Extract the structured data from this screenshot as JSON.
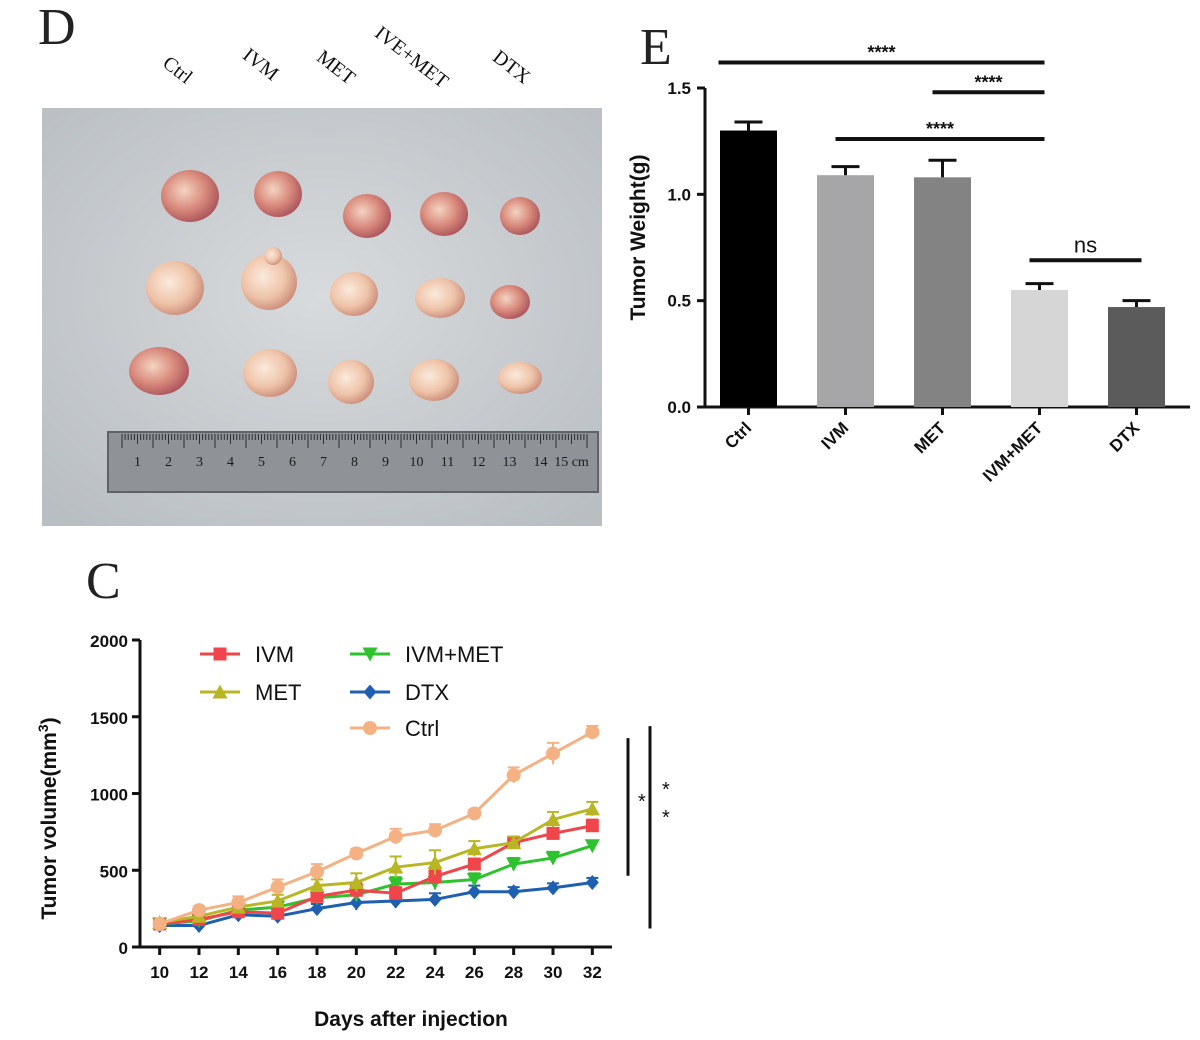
{
  "panels": {
    "d": {
      "letter": "D",
      "labels": [
        "Ctrl",
        "IVM",
        "MET",
        "IVE+MET",
        "DTX"
      ]
    },
    "e": {
      "letter": "E"
    },
    "c": {
      "letter": "C"
    }
  },
  "ruler": {
    "numbers": [
      "1",
      "2",
      "3",
      "4",
      "5",
      "6",
      "7",
      "8",
      "9",
      "10",
      "11",
      "12",
      "13",
      "14",
      "15 cm"
    ]
  },
  "colors": {
    "IVM": "#f0454a",
    "MET": "#b8b625",
    "IVM+MET": "#2ec22e",
    "DTX": "#1e5fb0",
    "Ctrl": "#f4b183"
  },
  "chart_data": [
    {
      "type": "bar",
      "title": "",
      "xlabel": "",
      "ylabel": "Tumor Weight(g)",
      "categories": [
        "Ctrl",
        "IVM",
        "MET",
        "IVM+MET",
        "DTX"
      ],
      "values": [
        1.3,
        1.09,
        1.08,
        0.55,
        0.47
      ],
      "errors": [
        0.04,
        0.04,
        0.08,
        0.03,
        0.03
      ],
      "bar_colors": [
        "#000000",
        "#a6a6a8",
        "#838383",
        "#d6d6d6",
        "#5b5b5b"
      ],
      "ylim": [
        0,
        1.5
      ],
      "yticks": [
        "0.0",
        "0.5",
        "1.0",
        "1.5"
      ],
      "significance": [
        {
          "from": 0,
          "to": 3,
          "label": "****",
          "y": 1.62
        },
        {
          "from": 2,
          "to": 3,
          "label": "****",
          "y": 1.48
        },
        {
          "from": 1,
          "to": 3,
          "label": "****",
          "y": 1.26
        },
        {
          "from": 3,
          "to": 4,
          "label": "ns",
          "y": 0.69
        }
      ]
    },
    {
      "type": "line",
      "title": "",
      "xlabel": "Days after injection",
      "ylabel": "Tumor volume(mm3)",
      "x": [
        10,
        12,
        14,
        16,
        18,
        20,
        22,
        24,
        26,
        28,
        30,
        32
      ],
      "xlim": [
        9,
        33
      ],
      "ylim": [
        0,
        2000
      ],
      "yticks": [
        "0",
        "500",
        "1000",
        "1500",
        "2000"
      ],
      "legend_position": "top-left",
      "series": [
        {
          "name": "IVM",
          "marker": "square",
          "values": [
            150,
            180,
            230,
            220,
            330,
            370,
            350,
            460,
            540,
            680,
            740,
            790
          ],
          "errors": [
            20,
            25,
            30,
            35,
            40,
            45,
            40,
            50,
            35,
            30,
            35,
            40
          ]
        },
        {
          "name": "MET",
          "marker": "triangle-up",
          "values": [
            160,
            200,
            260,
            300,
            400,
            420,
            520,
            550,
            640,
            680,
            830,
            900
          ],
          "errors": [
            20,
            25,
            30,
            40,
            40,
            60,
            70,
            80,
            50,
            40,
            50,
            45
          ]
        },
        {
          "name": "IVM+MET",
          "marker": "triangle-down",
          "values": [
            150,
            170,
            240,
            260,
            320,
            340,
            410,
            420,
            440,
            540,
            580,
            660
          ],
          "errors": [
            20,
            20,
            30,
            35,
            35,
            40,
            45,
            45,
            40,
            40,
            40,
            30
          ]
        },
        {
          "name": "DTX",
          "marker": "diamond",
          "values": [
            140,
            140,
            210,
            200,
            250,
            290,
            300,
            310,
            360,
            360,
            385,
            420
          ],
          "errors": [
            20,
            20,
            25,
            30,
            30,
            50,
            45,
            40,
            40,
            30,
            30,
            30
          ]
        },
        {
          "name": "Ctrl",
          "marker": "circle",
          "values": [
            150,
            240,
            290,
            390,
            490,
            610,
            720,
            760,
            870,
            1120,
            1260,
            1400
          ],
          "errors": [
            20,
            25,
            40,
            50,
            50,
            30,
            50,
            40,
            25,
            50,
            70,
            40
          ]
        }
      ],
      "significance": [
        {
          "label": "*",
          "from_series": "Ctrl",
          "to_series": "IVM"
        },
        {
          "label": "**",
          "from_series": "Ctrl",
          "to_series": "DTX"
        }
      ]
    }
  ]
}
